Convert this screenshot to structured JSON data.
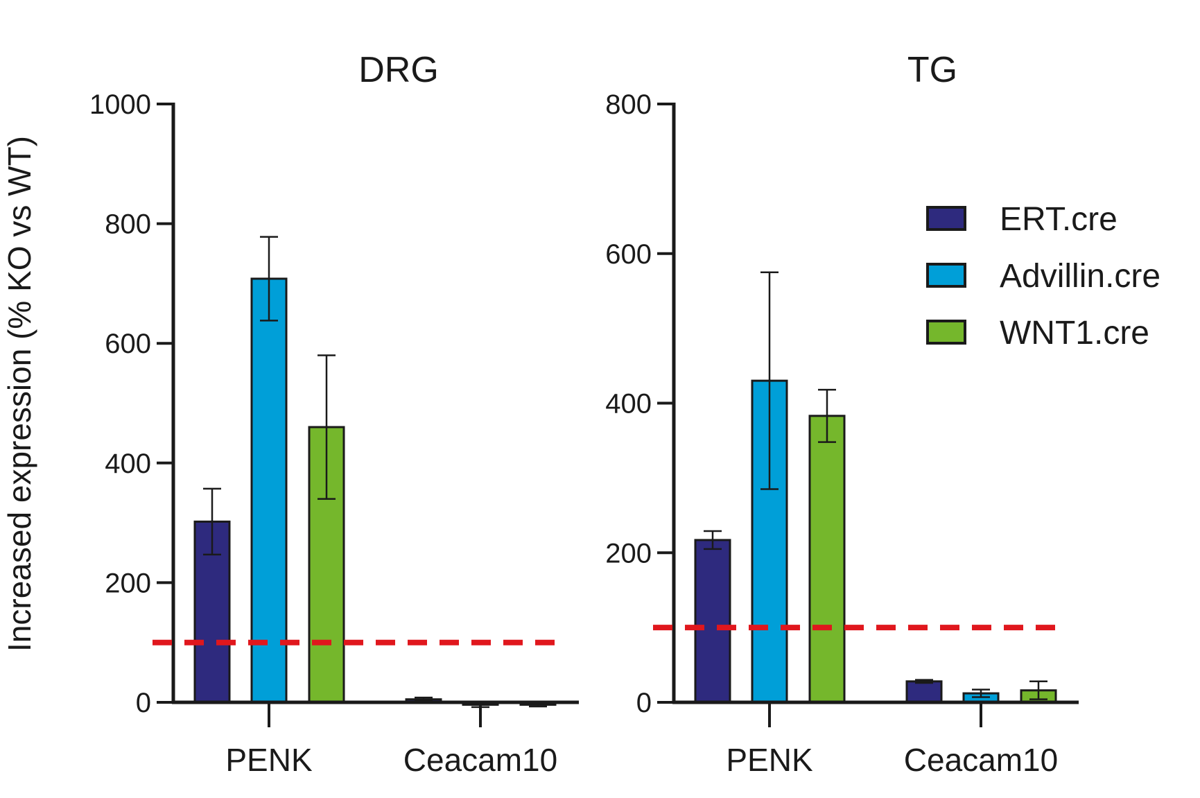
{
  "chart_data": [
    {
      "type": "bar",
      "title": "DRG",
      "ylabel": "Increased expression (% KO vs WT)",
      "xlabel": "",
      "ylim": [
        0,
        1000
      ],
      "yticks": [
        0,
        200,
        400,
        600,
        800,
        1000
      ],
      "categories": [
        "PENK",
        "Ceacam10"
      ],
      "reference_line": 100,
      "series": [
        {
          "name": "ERT.cre",
          "values": [
            302,
            5
          ],
          "errors": [
            55,
            3
          ]
        },
        {
          "name": "Advillin.cre",
          "values": [
            708,
            -4
          ],
          "errors": [
            70,
            4
          ]
        },
        {
          "name": "WNT1.cre",
          "values": [
            460,
            -4
          ],
          "errors": [
            120,
            3
          ]
        }
      ]
    },
    {
      "type": "bar",
      "title": "TG",
      "ylabel": "",
      "xlabel": "",
      "ylim": [
        0,
        800
      ],
      "yticks": [
        0,
        200,
        400,
        600,
        800
      ],
      "categories": [
        "PENK",
        "Ceacam10"
      ],
      "reference_line": 100,
      "series": [
        {
          "name": "ERT.cre",
          "values": [
            217,
            28
          ],
          "errors": [
            12,
            2
          ]
        },
        {
          "name": "Advillin.cre",
          "values": [
            430,
            12
          ],
          "errors": [
            145,
            5
          ]
        },
        {
          "name": "WNT1.cre",
          "values": [
            383,
            16
          ],
          "errors": [
            35,
            12
          ]
        }
      ]
    }
  ],
  "legend": {
    "position": "right",
    "items": [
      {
        "label": "ERT.cre",
        "color": "#2e2a7e"
      },
      {
        "label": "Advillin.cre",
        "color": "#009fd8"
      },
      {
        "label": "WNT1.cre",
        "color": "#75b72c"
      }
    ]
  },
  "colors": {
    "ERT.cre": "#2e2a7e",
    "Advillin.cre": "#009fd8",
    "WNT1.cre": "#75b72c",
    "reference_line": "#e0171d",
    "axis": "#1a1a1a"
  }
}
